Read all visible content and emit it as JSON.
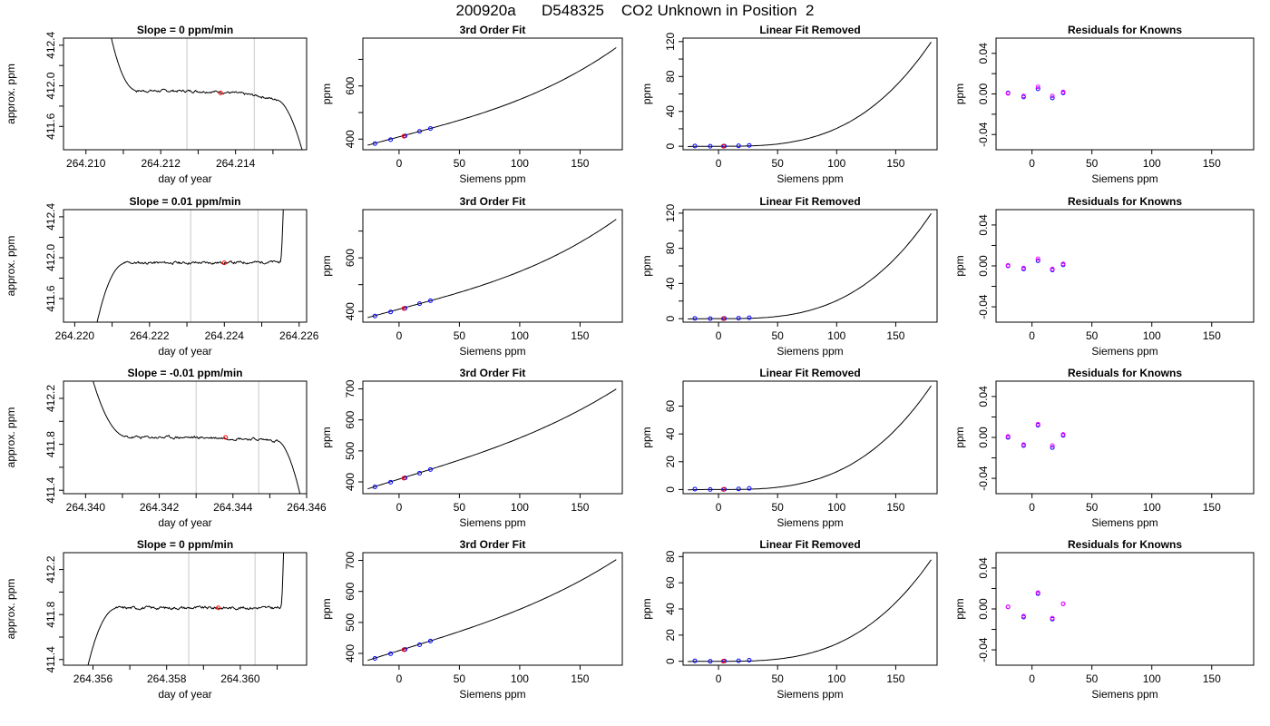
{
  "title": "200920a      D548325    CO2 Unknown in Position  2",
  "colors": {
    "line": "#000000",
    "grid": "#c8c8c8",
    "known": "#0000ff",
    "unknown": "#ff0000",
    "residual_a": "#0000ff",
    "residual_b": "#ff00ff"
  },
  "chart_data": [
    {
      "type": "line",
      "row": 0,
      "col": 0,
      "title": "Slope =  0  ppm/min",
      "xlabel": "day of year",
      "ylabel": "approx. ppm",
      "xlim": [
        264.2094,
        264.2159
      ],
      "ylim": [
        411.37,
        412.47
      ],
      "xticks": [
        264.21,
        264.211,
        264.212,
        264.213,
        264.214,
        264.215
      ],
      "xticklabels": [
        "264.210",
        "",
        "264.212",
        "",
        "264.214",
        ""
      ],
      "yticks": [
        411.6,
        411.8,
        412.0,
        412.2,
        412.4
      ],
      "yticklabels": [
        "411.6",
        "",
        "412.0",
        "",
        "412.4"
      ],
      "vlines": [
        264.2127,
        264.2145
      ],
      "unknown_point": {
        "x": 264.2136,
        "y": 411.93
      },
      "trace": {
        "t0": 264.2105,
        "t1": 264.2159,
        "level": 411.95,
        "start": 412.8,
        "end": 411.2,
        "rise_end": 264.2114,
        "fall_start": 264.2151,
        "fall_level": 411.86,
        "seed": 7
      }
    },
    {
      "type": "line",
      "row": 0,
      "col": 1,
      "title": "3rd Order Fit",
      "xlabel": "Siemens ppm",
      "ylabel": "ppm",
      "xlim": [
        -30,
        185
      ],
      "ylim": [
        360,
        780
      ],
      "xticks": [
        0,
        50,
        100,
        150
      ],
      "xticklabels": [
        "0",
        "50",
        "100",
        "150"
      ],
      "yticks": [
        400,
        500,
        600,
        700
      ],
      "yticklabels": [
        "400",
        "",
        "600",
        ""
      ],
      "curve": {
        "x0": -26,
        "x1": 180,
        "c0": 408.5,
        "c1": 1.2,
        "c2": 0,
        "c3": 2.05e-05
      },
      "knowns": [
        [
          -20,
          383
        ],
        [
          -7,
          398
        ],
        [
          5,
          412
        ],
        [
          17,
          429
        ],
        [
          26,
          440
        ]
      ],
      "unknown_point": {
        "x": 4,
        "y": 411
      }
    },
    {
      "type": "line",
      "row": 0,
      "col": 2,
      "title": "Linear Fit Removed",
      "xlabel": "Siemens ppm",
      "ylabel": "ppm",
      "xlim": [
        -30,
        185
      ],
      "ylim": [
        -4,
        124
      ],
      "xticks": [
        0,
        50,
        100,
        150
      ],
      "xticklabels": [
        "0",
        "50",
        "100",
        "150"
      ],
      "yticks": [
        0,
        20,
        40,
        60,
        80,
        100,
        120
      ],
      "yticklabels": [
        "0",
        "",
        "40",
        "",
        "80",
        "",
        "120"
      ],
      "curve": {
        "x0": -26,
        "x1": 180,
        "c0": 0,
        "c1": 0,
        "c2": 0,
        "c3": 2.05e-05
      },
      "knowns": [
        [
          -20,
          0.3
        ],
        [
          -7,
          0
        ],
        [
          5,
          0.2
        ],
        [
          17,
          0.5
        ],
        [
          26,
          1
        ]
      ],
      "unknown_point": {
        "x": 4,
        "y": 0
      }
    },
    {
      "type": "scatter",
      "row": 0,
      "col": 3,
      "title": "Residuals for Knowns",
      "xlabel": "Siemens ppm",
      "ylabel": "ppm",
      "xlim": [
        -30,
        185
      ],
      "ylim": [
        -0.055,
        0.055
      ],
      "xticks": [
        0,
        50,
        100,
        150
      ],
      "xticklabels": [
        "0",
        "50",
        "100",
        "150"
      ],
      "yticks": [
        -0.04,
        -0.02,
        0,
        0.02,
        0.04
      ],
      "yticklabels": [
        "-0.04",
        "",
        "0.00",
        "",
        "0.04"
      ],
      "points_a": [
        [
          -20,
          0.001
        ],
        [
          -7,
          -0.003
        ],
        [
          5,
          0.005
        ],
        [
          17,
          -0.004
        ],
        [
          26,
          0.001
        ]
      ],
      "points_b": [
        [
          -20,
          0.0005
        ],
        [
          -7,
          -0.002
        ],
        [
          5,
          0.007
        ],
        [
          17,
          -0.002
        ],
        [
          26,
          0.002
        ]
      ]
    },
    {
      "type": "line",
      "row": 1,
      "col": 0,
      "title": "Slope =  0.01  ppm/min",
      "xlabel": "day of year",
      "ylabel": "approx. ppm",
      "xlim": [
        264.2197,
        264.2262
      ],
      "ylim": [
        411.37,
        412.47
      ],
      "xticks": [
        264.22,
        264.221,
        264.222,
        264.223,
        264.224,
        264.225,
        264.226
      ],
      "xticklabels": [
        "264.220",
        "",
        "264.222",
        "",
        "264.224",
        "",
        "264.226"
      ],
      "yticks": [
        411.6,
        411.8,
        412.0,
        412.2,
        412.4
      ],
      "yticklabels": [
        "411.6",
        "",
        "412.0",
        "",
        "412.4"
      ],
      "vlines": [
        264.2231,
        264.2249
      ],
      "unknown_point": {
        "x": 264.224,
        "y": 411.95
      },
      "trace": {
        "t0": 264.2205,
        "t1": 264.2256,
        "level": 411.95,
        "start": 411.2,
        "end": 412.8,
        "rise_end": 264.2214,
        "fall_start": 264.2255,
        "fall_level": 411.96,
        "seed": 11
      }
    },
    {
      "type": "line",
      "row": 1,
      "col": 1,
      "title": "3rd Order Fit",
      "xlabel": "Siemens ppm",
      "ylabel": "ppm",
      "xlim": [
        -30,
        185
      ],
      "ylim": [
        360,
        780
      ],
      "xticks": [
        0,
        50,
        100,
        150
      ],
      "xticklabels": [
        "0",
        "50",
        "100",
        "150"
      ],
      "yticks": [
        400,
        500,
        600,
        700
      ],
      "yticklabels": [
        "400",
        "",
        "600",
        ""
      ],
      "curve": {
        "x0": -26,
        "x1": 180,
        "c0": 408.5,
        "c1": 1.2,
        "c2": 0,
        "c3": 2.05e-05
      },
      "knowns": [
        [
          -20,
          383
        ],
        [
          -7,
          398
        ],
        [
          5,
          412
        ],
        [
          17,
          429
        ],
        [
          26,
          440
        ]
      ],
      "unknown_point": {
        "x": 4,
        "y": 411
      }
    },
    {
      "type": "line",
      "row": 1,
      "col": 2,
      "title": "Linear Fit Removed",
      "xlabel": "Siemens ppm",
      "ylabel": "ppm",
      "xlim": [
        -30,
        185
      ],
      "ylim": [
        -4,
        124
      ],
      "xticks": [
        0,
        50,
        100,
        150
      ],
      "xticklabels": [
        "0",
        "50",
        "100",
        "150"
      ],
      "yticks": [
        0,
        20,
        40,
        60,
        80,
        100,
        120
      ],
      "yticklabels": [
        "0",
        "",
        "40",
        "",
        "80",
        "",
        "120"
      ],
      "curve": {
        "x0": -26,
        "x1": 180,
        "c0": 0,
        "c1": 0,
        "c2": 0,
        "c3": 2.05e-05
      },
      "knowns": [
        [
          -20,
          0.3
        ],
        [
          -7,
          0
        ],
        [
          5,
          0.2
        ],
        [
          17,
          0.5
        ],
        [
          26,
          1
        ]
      ],
      "unknown_point": {
        "x": 4,
        "y": 0
      }
    },
    {
      "type": "scatter",
      "row": 1,
      "col": 3,
      "title": "Residuals for Knowns",
      "xlabel": "Siemens ppm",
      "ylabel": "ppm",
      "xlim": [
        -30,
        185
      ],
      "ylim": [
        -0.055,
        0.055
      ],
      "xticks": [
        0,
        50,
        100,
        150
      ],
      "xticklabels": [
        "0",
        "50",
        "100",
        "150"
      ],
      "yticks": [
        -0.04,
        -0.02,
        0,
        0.02,
        0.04
      ],
      "yticklabels": [
        "-0.04",
        "",
        "0.00",
        "",
        "0.04"
      ],
      "points_a": [
        [
          -20,
          0
        ],
        [
          -7,
          -0.003
        ],
        [
          5,
          0.005
        ],
        [
          17,
          -0.004
        ],
        [
          26,
          0.001
        ]
      ],
      "points_b": [
        [
          -20,
          0.0005
        ],
        [
          -7,
          -0.002
        ],
        [
          5,
          0.007
        ],
        [
          17,
          -0.003
        ],
        [
          26,
          0.002
        ]
      ]
    },
    {
      "type": "line",
      "row": 2,
      "col": 0,
      "title": "Slope =  -0.01  ppm/min",
      "xlabel": "day of year",
      "ylabel": "approx. ppm",
      "xlim": [
        264.3394,
        264.346
      ],
      "ylim": [
        411.37,
        412.35
      ],
      "xticks": [
        264.34,
        264.341,
        264.342,
        264.343,
        264.344,
        264.345,
        264.346
      ],
      "xticklabels": [
        "264.340",
        "",
        "264.342",
        "",
        "264.344",
        "",
        "264.346"
      ],
      "yticks": [
        411.4,
        411.6,
        411.8,
        412.0,
        412.2
      ],
      "yticklabels": [
        "411.4",
        "",
        "411.8",
        "",
        "412.2"
      ],
      "vlines": [
        264.343,
        264.3447
      ],
      "unknown_point": {
        "x": 264.3438,
        "y": 411.86
      },
      "trace": {
        "t0": 264.34,
        "t1": 264.346,
        "level": 411.86,
        "start": 412.6,
        "end": 411.1,
        "rise_end": 264.3412,
        "fall_start": 264.3452,
        "fall_level": 411.83,
        "seed": 23
      }
    },
    {
      "type": "line",
      "row": 2,
      "col": 1,
      "title": "3rd Order Fit",
      "xlabel": "Siemens ppm",
      "ylabel": "ppm",
      "xlim": [
        -30,
        185
      ],
      "ylim": [
        362,
        725
      ],
      "xticks": [
        0,
        50,
        100,
        150
      ],
      "xticklabels": [
        "0",
        "50",
        "100",
        "150"
      ],
      "yticks": [
        400,
        500,
        600,
        700
      ],
      "yticklabels": [
        "400",
        "500",
        "600",
        "700"
      ],
      "curve": {
        "x0": -26,
        "x1": 180,
        "c0": 409,
        "c1": 1.2,
        "c2": 0,
        "c3": 1.28e-05
      },
      "knowns": [
        [
          -20,
          384
        ],
        [
          -7,
          399
        ],
        [
          5,
          413
        ],
        [
          17,
          428
        ],
        [
          26,
          440
        ]
      ],
      "unknown_point": {
        "x": 4,
        "y": 412
      }
    },
    {
      "type": "line",
      "row": 2,
      "col": 2,
      "title": "Linear Fit Removed",
      "xlabel": "Siemens ppm",
      "ylabel": "ppm",
      "xlim": [
        -30,
        185
      ],
      "ylim": [
        -3,
        78
      ],
      "xticks": [
        0,
        50,
        100,
        150
      ],
      "xticklabels": [
        "0",
        "50",
        "100",
        "150"
      ],
      "yticks": [
        0,
        20,
        40,
        60
      ],
      "yticklabels": [
        "0",
        "20",
        "40",
        "60"
      ],
      "curve": {
        "x0": -26,
        "x1": 180,
        "c0": 0,
        "c1": 0,
        "c2": 0,
        "c3": 1.28e-05
      },
      "knowns": [
        [
          -20,
          0.3
        ],
        [
          -7,
          0
        ],
        [
          5,
          0.2
        ],
        [
          17,
          0.4
        ],
        [
          26,
          0.8
        ]
      ],
      "unknown_point": {
        "x": 4,
        "y": 0
      }
    },
    {
      "type": "scatter",
      "row": 2,
      "col": 3,
      "title": "Residuals for Knowns",
      "xlabel": "Siemens ppm",
      "ylabel": "ppm",
      "xlim": [
        -30,
        185
      ],
      "ylim": [
        -0.055,
        0.055
      ],
      "xticks": [
        0,
        50,
        100,
        150
      ],
      "xticklabels": [
        "0",
        "50",
        "100",
        "150"
      ],
      "yticks": [
        -0.04,
        -0.02,
        0,
        0.02,
        0.04
      ],
      "yticklabels": [
        "-0.04",
        "",
        "0.00",
        "",
        "0.04"
      ],
      "points_a": [
        [
          -20,
          0
        ],
        [
          -7,
          -0.008
        ],
        [
          5,
          0.012
        ],
        [
          17,
          -0.01
        ],
        [
          26,
          0.002
        ]
      ],
      "points_b": [
        [
          -20,
          0.001
        ],
        [
          -7,
          -0.007
        ],
        [
          5,
          0.013
        ],
        [
          17,
          -0.008
        ],
        [
          26,
          0.003
        ]
      ]
    },
    {
      "type": "line",
      "row": 3,
      "col": 0,
      "title": "Slope =  0  ppm/min",
      "xlabel": "day of year",
      "ylabel": "approx. ppm",
      "xlim": [
        264.3552,
        264.3618
      ],
      "ylim": [
        411.35,
        412.35
      ],
      "xticks": [
        264.356,
        264.357,
        264.358,
        264.359,
        264.36,
        264.361
      ],
      "xticklabels": [
        "264.356",
        "",
        "264.358",
        "",
        "264.360",
        ""
      ],
      "yticks": [
        411.4,
        411.6,
        411.8,
        412.0,
        412.2
      ],
      "yticklabels": [
        "411.4",
        "",
        "411.8",
        "",
        "412.2"
      ],
      "vlines": [
        264.3586,
        264.3604
      ],
      "unknown_point": {
        "x": 264.3594,
        "y": 411.86
      },
      "trace": {
        "t0": 264.3557,
        "t1": 264.3612,
        "level": 411.86,
        "start": 411.1,
        "end": 412.7,
        "rise_end": 264.3567,
        "fall_start": 264.3611,
        "fall_level": 411.86,
        "seed": 31
      }
    },
    {
      "type": "line",
      "row": 3,
      "col": 1,
      "title": "3rd Order Fit",
      "xlabel": "Siemens ppm",
      "ylabel": "ppm",
      "xlim": [
        -30,
        185
      ],
      "ylim": [
        362,
        725
      ],
      "xticks": [
        0,
        50,
        100,
        150
      ],
      "xticklabels": [
        "0",
        "50",
        "100",
        "150"
      ],
      "yticks": [
        400,
        500,
        600,
        700
      ],
      "yticklabels": [
        "400",
        "500",
        "600",
        "700"
      ],
      "curve": {
        "x0": -26,
        "x1": 180,
        "c0": 409,
        "c1": 1.2,
        "c2": 0,
        "c3": 1.33e-05
      },
      "knowns": [
        [
          -20,
          384
        ],
        [
          -7,
          399
        ],
        [
          5,
          413
        ],
        [
          17,
          428
        ],
        [
          26,
          440
        ]
      ],
      "unknown_point": {
        "x": 4,
        "y": 412
      }
    },
    {
      "type": "line",
      "row": 3,
      "col": 2,
      "title": "Linear Fit Removed",
      "xlabel": "Siemens ppm",
      "ylabel": "ppm",
      "xlim": [
        -30,
        185
      ],
      "ylim": [
        -3,
        83
      ],
      "xticks": [
        0,
        50,
        100,
        150
      ],
      "xticklabels": [
        "0",
        "50",
        "100",
        "150"
      ],
      "yticks": [
        0,
        20,
        40,
        60,
        80
      ],
      "yticklabels": [
        "0",
        "20",
        "40",
        "60",
        "80"
      ],
      "curve": {
        "x0": -26,
        "x1": 180,
        "c0": 0,
        "c1": 0,
        "c2": 0,
        "c3": 1.33e-05
      },
      "knowns": [
        [
          -20,
          0.3
        ],
        [
          -7,
          0
        ],
        [
          5,
          0.2
        ],
        [
          17,
          0.4
        ],
        [
          26,
          0.8
        ]
      ],
      "unknown_point": {
        "x": 4,
        "y": 0
      }
    },
    {
      "type": "scatter",
      "row": 3,
      "col": 3,
      "title": "Residuals for Knowns",
      "xlabel": "Siemens ppm",
      "ylabel": "ppm",
      "xlim": [
        -30,
        185
      ],
      "ylim": [
        -0.055,
        0.055
      ],
      "xticks": [
        0,
        50,
        100,
        150
      ],
      "xticklabels": [
        "0",
        "50",
        "100",
        "150"
      ],
      "yticks": [
        -0.04,
        -0.02,
        0,
        0.02,
        0.04
      ],
      "yticklabels": [
        "-0.04",
        "",
        "0.00",
        "",
        "0.04"
      ],
      "points_a": [
        [
          -20,
          0.002
        ],
        [
          -7,
          -0.008
        ],
        [
          5,
          0.015
        ],
        [
          17,
          -0.01
        ],
        [
          26,
          0.005
        ]
      ],
      "points_b": [
        [
          -20,
          0.002
        ],
        [
          -7,
          -0.007
        ],
        [
          5,
          0.016
        ],
        [
          17,
          -0.009
        ],
        [
          26,
          0.005
        ]
      ]
    }
  ]
}
